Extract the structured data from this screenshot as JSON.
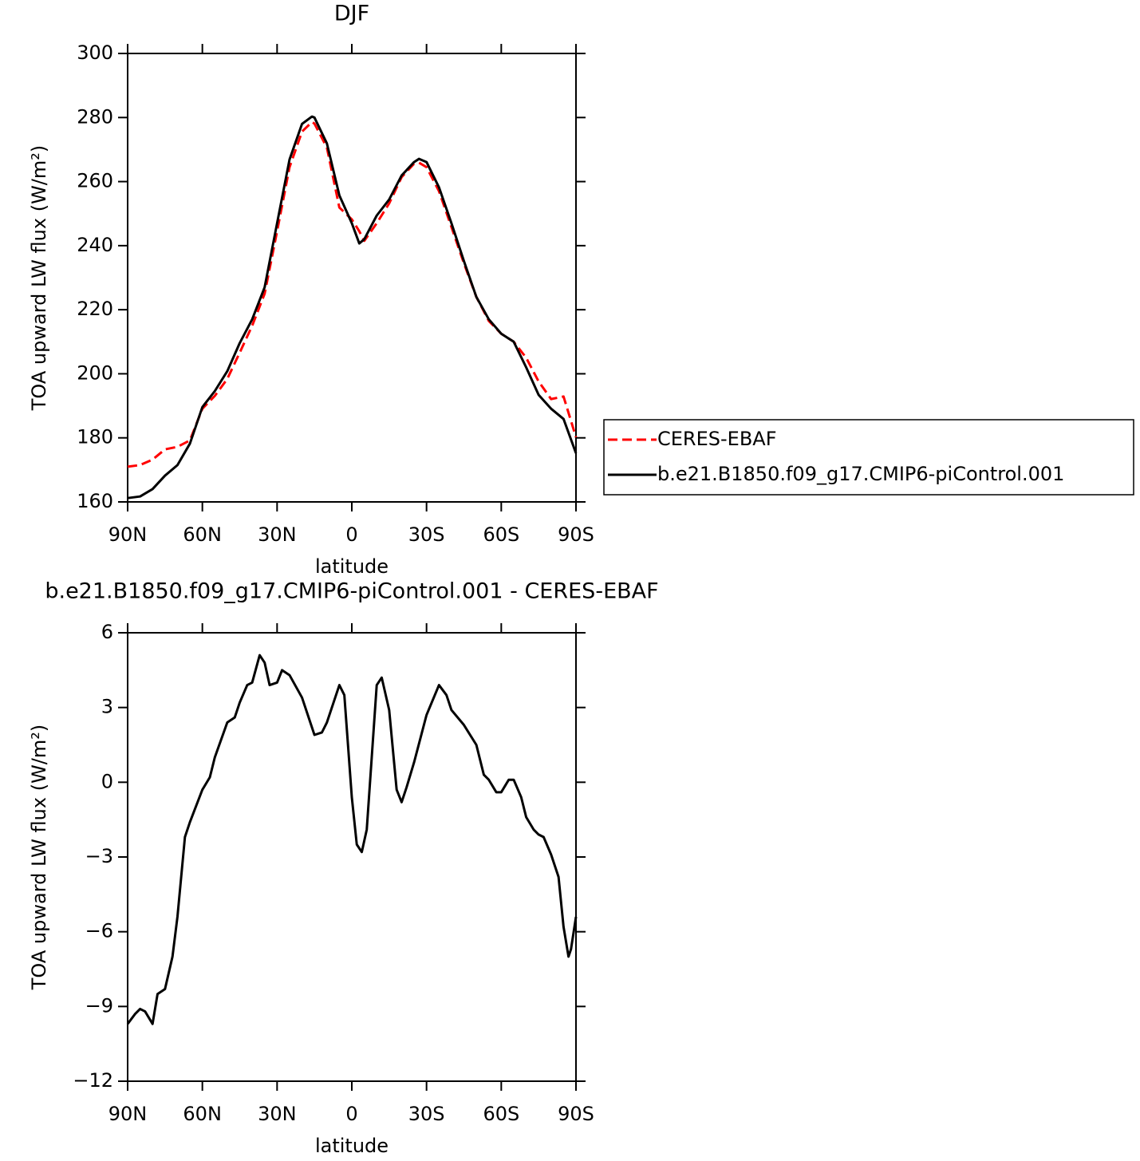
{
  "chart_data": [
    {
      "type": "line",
      "title": "DJF",
      "xlabel": "latitude",
      "ylabel": "TOA upward LW flux (W/m²)",
      "x": [
        90,
        85,
        80,
        75,
        70,
        65,
        60,
        55,
        50,
        45,
        40,
        35,
        30,
        25,
        20,
        16,
        15,
        10,
        5,
        0,
        -3,
        -5,
        -10,
        -15,
        -20,
        -25,
        -27,
        -30,
        -35,
        -40,
        -45,
        -50,
        -55,
        -60,
        -65,
        -70,
        -75,
        -80,
        -85,
        -90
      ],
      "series": [
        {
          "name": "CERES-EBAF",
          "color": "#ff0000",
          "linestyle": "dashed",
          "values": [
            171,
            171.5,
            173.2,
            176.4,
            177.2,
            179.2,
            189.1,
            193.1,
            198.4,
            206.6,
            215,
            225,
            244.5,
            264.5,
            275.6,
            278.6,
            278.1,
            270.6,
            251.9,
            248.2,
            244.5,
            241.5,
            247,
            253.2,
            261.4,
            265.6,
            265.9,
            264.5,
            257,
            245.8,
            234.5,
            224,
            216.5,
            212.5,
            210,
            205,
            197.6,
            192.1,
            192.9,
            180.2
          ]
        },
        {
          "name": "b.e21.B1850.f09_g17.CMIP6-piControl.001",
          "color": "#000000",
          "linestyle": "solid",
          "values": [
            161.2,
            161.7,
            164,
            168.2,
            171.5,
            178.2,
            189.6,
            194.6,
            200.8,
            209.6,
            217,
            227,
            247,
            266.9,
            278,
            280.3,
            280,
            271.9,
            255.7,
            247,
            240.7,
            242,
            249.4,
            254.4,
            261.9,
            266.1,
            267.1,
            266.1,
            258.2,
            247,
            235.2,
            224,
            217,
            212.5,
            210,
            202,
            193.4,
            189.1,
            185.9,
            175.2
          ]
        }
      ],
      "xlim": [
        90,
        -90
      ],
      "xticks": [
        {
          "value": 90,
          "label": "90N"
        },
        {
          "value": 60,
          "label": "60N"
        },
        {
          "value": 30,
          "label": "30N"
        },
        0,
        {
          "value": -30,
          "label": "30S"
        },
        {
          "value": -60,
          "label": "60S"
        },
        {
          "value": -90,
          "label": "90S"
        }
      ],
      "ylim": [
        160,
        300
      ],
      "yticks": [
        160,
        180,
        200,
        220,
        240,
        260,
        280,
        300
      ],
      "legend": "outside-right"
    },
    {
      "type": "line",
      "title": "b.e21.B1850.f09_g17.CMIP6-piControl.001 - CERES-EBAF",
      "xlabel": "latitude",
      "ylabel": "TOA upward LW flux (W/m²)",
      "x": [
        90,
        87,
        85,
        83,
        80,
        78,
        75,
        72,
        70,
        67,
        65,
        60,
        57,
        55,
        50,
        47,
        45,
        42,
        40,
        37,
        35,
        33,
        30,
        28,
        25,
        20,
        15,
        12,
        10,
        5,
        3,
        0,
        -2,
        -4,
        -6,
        -8,
        -10,
        -12,
        -15,
        -18,
        -20,
        -22,
        -25,
        -30,
        -35,
        -38,
        -40,
        -45,
        -50,
        -53,
        -55,
        -58,
        -60,
        -63,
        -65,
        -68,
        -70,
        -73,
        -75,
        -77,
        -80,
        -83,
        -85,
        -87,
        -88,
        -90
      ],
      "values": [
        -9.7,
        -9.3,
        -9.1,
        -9.2,
        -9.7,
        -8.5,
        -8.3,
        -7.0,
        -5.4,
        -2.2,
        -1.6,
        -0.3,
        0.2,
        1.0,
        2.4,
        2.6,
        3.2,
        3.9,
        4.0,
        5.1,
        4.8,
        3.9,
        4.0,
        4.5,
        4.3,
        3.4,
        1.9,
        2.0,
        2.4,
        3.9,
        3.5,
        -0.6,
        -2.5,
        -2.8,
        -1.9,
        1.0,
        3.9,
        4.2,
        2.9,
        -0.3,
        -0.8,
        -0.2,
        0.8,
        2.7,
        3.9,
        3.5,
        2.9,
        2.3,
        1.5,
        0.3,
        0.1,
        -0.4,
        -0.4,
        0.1,
        0.1,
        -0.6,
        -1.4,
        -1.9,
        -2.1,
        -2.2,
        -2.9,
        -3.8,
        -5.8,
        -7.0,
        -6.7,
        -5.4
      ],
      "color": "#000000",
      "linestyle": "solid",
      "xlim": [
        90,
        -90
      ],
      "xticks": [
        {
          "value": 90,
          "label": "90N"
        },
        {
          "value": 60,
          "label": "60N"
        },
        {
          "value": 30,
          "label": "30N"
        },
        0,
        {
          "value": -30,
          "label": "30S"
        },
        {
          "value": -60,
          "label": "60S"
        },
        {
          "value": -90,
          "label": "90S"
        }
      ],
      "ylim": [
        -12,
        6
      ],
      "yticks": [
        {
          "value": -12,
          "label": "−12"
        },
        {
          "value": -9,
          "label": "−9"
        },
        {
          "value": -6,
          "label": "−6"
        },
        {
          "value": -3,
          "label": "−3"
        },
        0,
        3,
        6
      ]
    }
  ]
}
